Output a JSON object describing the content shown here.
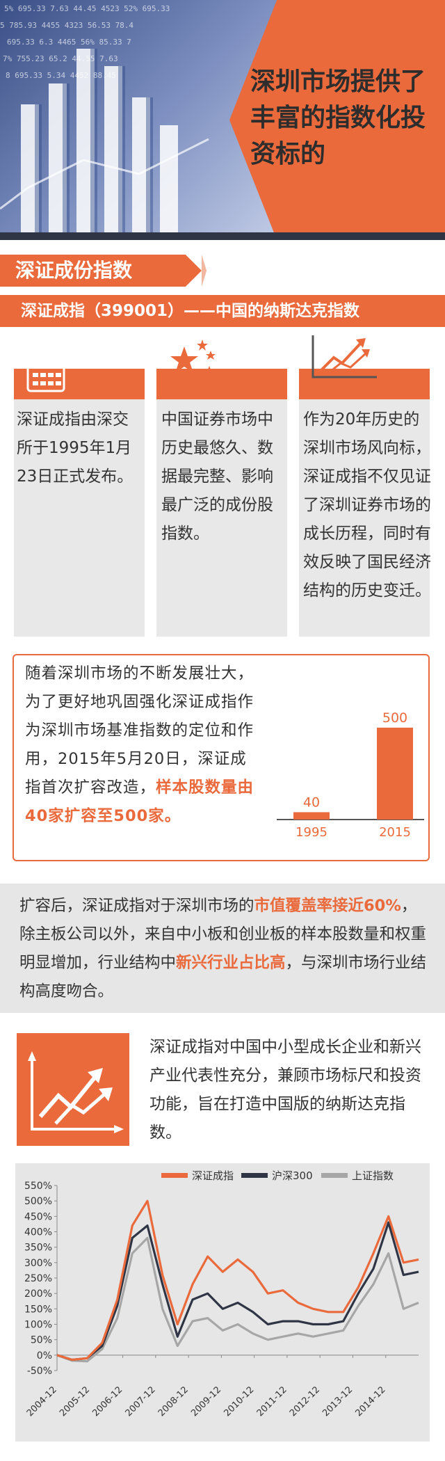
{
  "hero": {
    "title": "深圳市场提供了丰富的指数化投资标的",
    "ticker_rows": [
      "5% 695.33 7.63 44.45 4523 52% 695.33",
      "5 785.93 4455 4323 56.53 78.4",
      "695.33 6.3 4465 56% 85.33 7",
      "7% 755.23 65.2 44.55 7.63",
      "8 695.33 5.34 4452 88.45"
    ]
  },
  "section": {
    "tag": "深证成份指数",
    "subtitle": "深证成指（399001）——中国的纳斯达克指数"
  },
  "columns": [
    {
      "icon": "calendar-icon",
      "text": "深证成指由深交所于1995年1月23日正式发布。"
    },
    {
      "icon": "stars-icon",
      "text": "中国证券市场中历史最悠久、数据最完整、影响最广泛的成份股指数。"
    },
    {
      "icon": "rising-chart-icon",
      "text": "作为20年历史的深圳市场风向标，深证成指不仅见证了深圳证券市场的成长历程，同时有效反映了国民经济结构的历史变迁。"
    }
  ],
  "callout": {
    "text_plain": "随着深圳市场的不断发展壮大，为了更好地巩固强化深证成指作为深圳市场基准指数的定位和作用，2015年5月20日，深证成指首次扩容改造，",
    "text_highlight": "样本股数量由40家扩容至500家。"
  },
  "band": {
    "p1": "扩容后，深证成指对于深圳市场的",
    "h1": "市值覆盖率接近60%",
    "p2": "，除主板公司以外，来自中小板和创业板的样本股数量和权重明显增加，行业结构中",
    "h2": "新兴行业占比高",
    "p3": "，与深圳市场行业结构高度吻合。"
  },
  "paragraph": "深证成指对中国中小型成长企业和新兴产业代表性充分，兼顾市场标尺和投资功能，旨在打造中国版的纳斯达克指数。",
  "colors": {
    "accent": "#ea6a3c",
    "dark": "#2f3545",
    "gray": "#a6a6a6",
    "panel": "#e6e6e6"
  },
  "chart_data": [
    {
      "type": "bar",
      "categories": [
        "1995",
        "2015"
      ],
      "values": [
        40,
        500
      ],
      "ylim": [
        0,
        560
      ]
    },
    {
      "type": "line",
      "x": [
        "2004-12",
        "2005-06",
        "2005-12",
        "2006-06",
        "2006-12",
        "2007-06",
        "2007-10",
        "2008-06",
        "2008-11",
        "2009-06",
        "2009-12",
        "2010-06",
        "2010-12",
        "2011-06",
        "2011-12",
        "2012-06",
        "2012-12",
        "2013-06",
        "2013-12",
        "2014-06",
        "2014-12",
        "2015-03",
        "2015-06",
        "2015-08",
        "2015-12"
      ],
      "x_ticks": [
        "2004-12",
        "2005-12",
        "2006-12",
        "2007-12",
        "2008-12",
        "2009-12",
        "2010-12",
        "2011-12",
        "2012-12",
        "2013-12",
        "2014-12"
      ],
      "y_ticks": [
        "550%",
        "500%",
        "450%",
        "400%",
        "350%",
        "300%",
        "250%",
        "200%",
        "150%",
        "100%",
        "50%",
        "0%",
        "-50%"
      ],
      "ylim": [
        -50,
        550
      ],
      "series": [
        {
          "name": "深证成指",
          "color": "#ea6a3c",
          "values": [
            0,
            -15,
            -10,
            40,
            180,
            420,
            500,
            260,
            100,
            230,
            320,
            270,
            310,
            270,
            200,
            210,
            170,
            150,
            140,
            140,
            220,
            330,
            450,
            300,
            310
          ]
        },
        {
          "name": "沪深300",
          "color": "#2f3545",
          "values": [
            0,
            -15,
            -10,
            30,
            160,
            380,
            420,
            230,
            60,
            180,
            200,
            150,
            170,
            140,
            100,
            110,
            110,
            100,
            100,
            110,
            200,
            280,
            430,
            260,
            270
          ]
        },
        {
          "name": "上证指数",
          "color": "#a6a6a6",
          "values": [
            0,
            -18,
            -20,
            20,
            120,
            330,
            380,
            150,
            30,
            110,
            120,
            80,
            100,
            70,
            50,
            60,
            70,
            60,
            70,
            80,
            160,
            230,
            330,
            150,
            170
          ]
        }
      ]
    }
  ]
}
